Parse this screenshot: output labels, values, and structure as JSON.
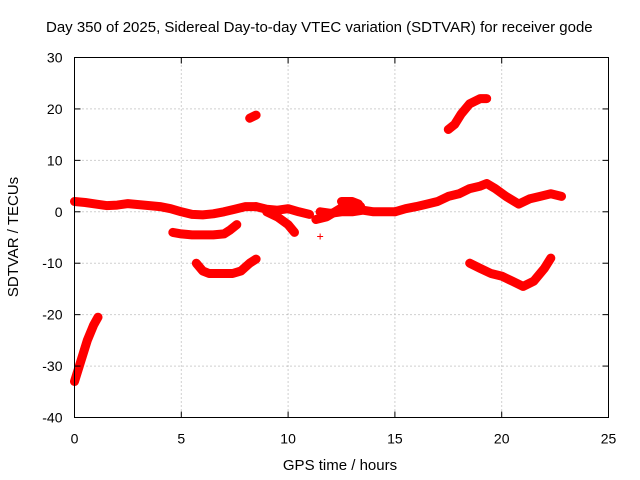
{
  "chart_data": {
    "type": "scatter",
    "title": "Day 350 of 2025, Sidereal Day-to-day VTEC variation (SDTVAR) for receiver gode",
    "xlabel": "GPS time / hours",
    "ylabel": "SDTVAR / TECUs",
    "xlim": [
      0,
      25
    ],
    "ylim": [
      -40,
      30
    ],
    "xticks": [
      0,
      5,
      10,
      15,
      20,
      25
    ],
    "yticks": [
      -40,
      -30,
      -20,
      -10,
      0,
      10,
      20,
      30
    ],
    "grid": true,
    "marker": "+",
    "color": "#ff0000",
    "series": [
      {
        "name": "arc-1",
        "x": [
          0,
          0.3,
          0.6,
          0.9,
          1.1
        ],
        "y": [
          -33,
          -29,
          -25,
          -22,
          -20.5
        ]
      },
      {
        "name": "arc-2",
        "x": [
          0,
          0.5,
          1,
          1.5,
          2,
          2.5,
          3,
          3.5,
          4,
          4.5,
          5,
          5.5,
          6,
          6.5,
          7,
          7.5,
          8,
          8.5
        ],
        "y": [
          2,
          1.8,
          1.5,
          1.2,
          1.3,
          1.6,
          1.4,
          1.2,
          1.0,
          0.6,
          0,
          -0.5,
          -0.6,
          -0.4,
          0,
          0.5,
          1,
          1
        ]
      },
      {
        "name": "arc-3",
        "x": [
          4.6,
          5,
          5.5,
          6,
          6.5,
          7,
          7.3,
          7.6
        ],
        "y": [
          -4,
          -4.3,
          -4.5,
          -4.5,
          -4.5,
          -4.3,
          -3.5,
          -2.5
        ]
      },
      {
        "name": "arc-4",
        "x": [
          5.7,
          6,
          6.3,
          6.7,
          7,
          7.4,
          7.8,
          8.2,
          8.5
        ],
        "y": [
          -10,
          -11.5,
          -12,
          -12,
          -12,
          -12,
          -11.5,
          -10,
          -9.2
        ]
      },
      {
        "name": "arc-5",
        "x": [
          8.2,
          8.5
        ],
        "y": [
          18.2,
          18.8
        ]
      },
      {
        "name": "arc-6",
        "x": [
          8.5,
          9,
          9.5,
          10,
          10.5,
          11
        ],
        "y": [
          1,
          0.5,
          0.3,
          0.6,
          0,
          -0.5
        ]
      },
      {
        "name": "arc-7",
        "x": [
          9.0,
          9.5,
          10.0,
          10.3
        ],
        "y": [
          0,
          -1,
          -2.5,
          -4
        ]
      },
      {
        "name": "arc-8",
        "x": [
          11.5
        ],
        "y": [
          -4.8
        ]
      },
      {
        "name": "arc-9",
        "x": [
          11.3,
          11.8,
          12.2,
          12.6,
          13.0,
          13.4
        ],
        "y": [
          -1.5,
          -1,
          0,
          1,
          1.5,
          1
        ]
      },
      {
        "name": "arc-10",
        "x": [
          11.5,
          12,
          12.5,
          13,
          13.5,
          14,
          14.5,
          15
        ],
        "y": [
          0,
          -0.3,
          0,
          0,
          0.3,
          0,
          0,
          0
        ]
      },
      {
        "name": "arc-11",
        "x": [
          12.5,
          13,
          13.3
        ],
        "y": [
          2,
          2,
          1.5
        ]
      },
      {
        "name": "arc-12",
        "x": [
          15,
          15.5,
          16,
          16.5,
          17,
          17.5,
          18,
          18.5,
          19,
          19.3,
          19.7,
          20.2,
          20.8,
          21.3,
          21.8,
          22.3,
          22.8
        ],
        "y": [
          0,
          0.6,
          1,
          1.5,
          2,
          3,
          3.5,
          4.5,
          5,
          5.5,
          4.5,
          3,
          1.5,
          2.5,
          3,
          3.5,
          3
        ]
      },
      {
        "name": "arc-13",
        "x": [
          17.5,
          17.8,
          18.1,
          18.5,
          19,
          19.3
        ],
        "y": [
          16,
          17,
          19,
          21,
          22,
          22
        ]
      },
      {
        "name": "arc-14",
        "x": [
          18.5,
          19,
          19.5,
          20,
          20.5,
          21,
          21.5,
          22,
          22.3
        ],
        "y": [
          -10,
          -11,
          -12,
          -12.5,
          -13.5,
          -14.5,
          -13.5,
          -11,
          -9
        ]
      }
    ]
  }
}
